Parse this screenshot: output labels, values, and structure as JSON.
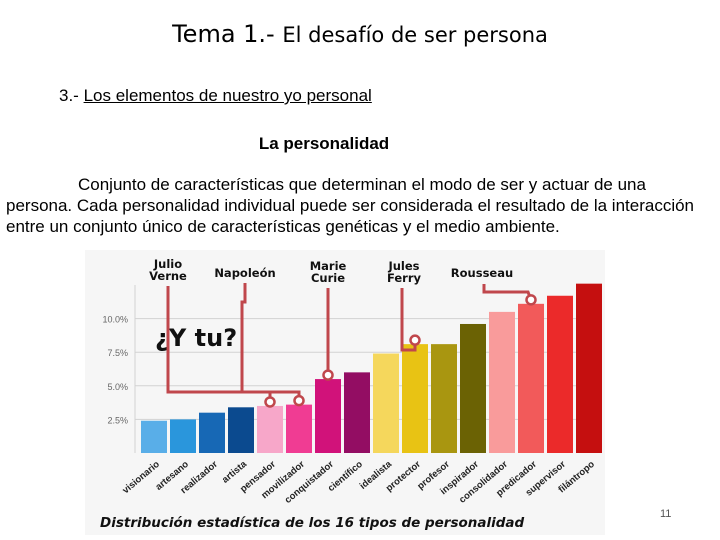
{
  "slide": {
    "title_main": "Tema 1.-",
    "title_rest": "El desafío de ser persona",
    "section_prefix": "3.-",
    "section_title": "Los elementos de nuestro yo personal",
    "subheading": "La personalidad",
    "paragraph": "Conjunto de características que determinan el modo de ser y actuar de una persona. Cada  personalidad individual puede ser considerada el resultado de la interacción entre un conjunto único de características genéticas y el medio ambiente.",
    "page_number": "11"
  },
  "chart_data": {
    "type": "bar",
    "title": "Distribución estadística de los 16 tipos de personalidad",
    "callout": "¿Y tu?",
    "xlabel": "",
    "ylabel": "",
    "ylim": [
      0,
      12.5
    ],
    "yticks": [
      "2.5%",
      "5.0%",
      "7.5%",
      "10.0%"
    ],
    "ytick_values": [
      2.5,
      5.0,
      7.5,
      10.0
    ],
    "grid": true,
    "categories": [
      "visionario",
      "artesano",
      "realizador",
      "artista",
      "pensador",
      "movilizador",
      "conquistador",
      "científico",
      "idealista",
      "protector",
      "profesor",
      "inspirador",
      "consolidador",
      "predicador",
      "supervisor",
      "filántropo"
    ],
    "values": [
      2.4,
      2.5,
      3.0,
      3.4,
      3.5,
      3.6,
      5.5,
      6.0,
      7.4,
      8.1,
      8.1,
      9.6,
      10.5,
      11.1,
      11.7,
      12.6
    ],
    "colors": [
      "#59aee8",
      "#2a96dc",
      "#1768b5",
      "#0b4a8f",
      "#f7a7c9",
      "#f03c93",
      "#d1127a",
      "#930d63",
      "#f5d75c",
      "#e8c314",
      "#a99610",
      "#6b6204",
      "#f99b9b",
      "#f25a5a",
      "#eb2a2a",
      "#c50f0f"
    ],
    "annotations": [
      {
        "label": "Julio\nVerne",
        "category": "pensador"
      },
      {
        "label": "Napoleón",
        "category": "movilizador"
      },
      {
        "label": "Marie\nCurie",
        "category": "conquistador"
      },
      {
        "label": "Jules\nFerry",
        "category": "protector"
      },
      {
        "label": "Rousseau",
        "category": "predicador"
      }
    ]
  }
}
